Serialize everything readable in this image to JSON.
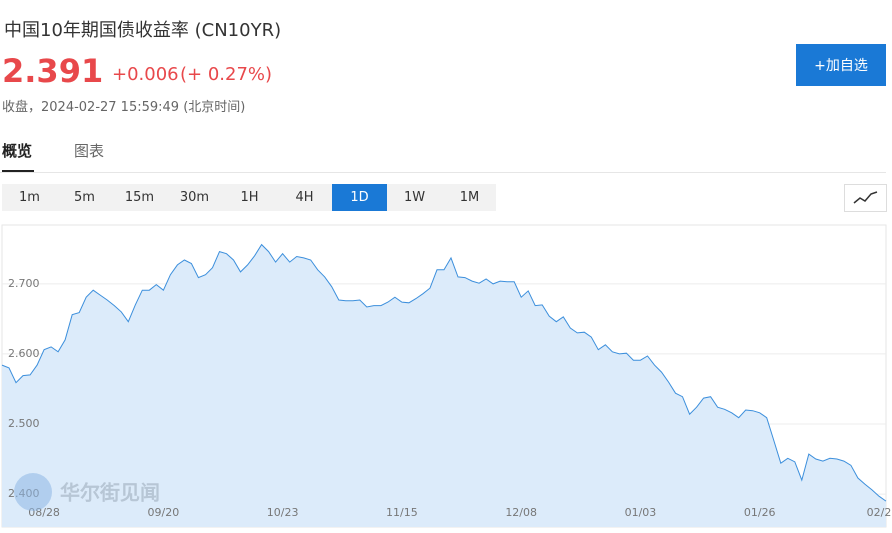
{
  "header": {
    "title": "中国10年期国债收益率  (CN10YR)",
    "price": "2.391",
    "change": "+0.006",
    "change_pct": "(+ 0.27%)",
    "status": "收盘，2024-02-27 15:59:49 (北京时间)",
    "button": "+加自选"
  },
  "tabs": [
    "概览",
    "图表"
  ],
  "intervals": {
    "options": [
      "1m",
      "5m",
      "15m",
      "30m",
      "1H",
      "4H",
      "1D",
      "1W",
      "1M"
    ],
    "active": "1D"
  },
  "watermark": "华尔街见闻",
  "chart_data": {
    "type": "area",
    "categories": [
      null,
      null,
      null,
      null,
      null,
      null,
      "08/28",
      null,
      null,
      null,
      null,
      null,
      null,
      null,
      null,
      null,
      null,
      null,
      null,
      null,
      null,
      null,
      null,
      "09/20",
      null,
      null,
      null,
      null,
      null,
      null,
      null,
      null,
      null,
      null,
      null,
      null,
      null,
      null,
      null,
      null,
      "10/23",
      null,
      null,
      null,
      null,
      null,
      null,
      null,
      null,
      null,
      null,
      null,
      null,
      null,
      null,
      null,
      null,
      "11/15",
      null,
      null,
      null,
      null,
      null,
      null,
      null,
      null,
      null,
      null,
      null,
      null,
      null,
      null,
      null,
      null,
      "12/08",
      null,
      null,
      null,
      null,
      null,
      null,
      null,
      null,
      null,
      null,
      null,
      null,
      null,
      null,
      null,
      null,
      "01/03",
      null,
      null,
      null,
      null,
      null,
      null,
      null,
      null,
      null,
      null,
      null,
      null,
      null,
      null,
      null,
      null,
      "01/26",
      null,
      null,
      null,
      null,
      null,
      null,
      null,
      null,
      null,
      null,
      null,
      null,
      null,
      null,
      null,
      null,
      "02/2",
      null
    ],
    "series": [
      {
        "color": "#3c8fdc",
        "fill": "#dcebfa",
        "values": [
          2.584,
          2.58,
          2.559,
          2.569,
          2.57,
          2.584,
          2.606,
          2.61,
          2.603,
          2.62,
          2.656,
          2.659,
          2.681,
          2.691,
          2.684,
          2.677,
          2.669,
          2.66,
          2.646,
          2.67,
          2.691,
          2.691,
          2.699,
          2.691,
          2.713,
          2.727,
          2.734,
          2.729,
          2.709,
          2.713,
          2.723,
          2.746,
          2.743,
          2.734,
          2.717,
          2.727,
          2.74,
          2.756,
          2.746,
          2.731,
          2.743,
          2.731,
          2.739,
          2.737,
          2.734,
          2.72,
          2.71,
          2.696,
          2.677,
          2.676,
          2.676,
          2.677,
          2.667,
          2.669,
          2.669,
          2.674,
          2.681,
          2.674,
          2.673,
          2.679,
          2.686,
          2.694,
          2.72,
          2.72,
          2.737,
          2.71,
          2.709,
          2.704,
          2.701,
          2.707,
          2.7,
          2.704,
          2.703,
          2.703,
          2.681,
          2.69,
          2.669,
          2.67,
          2.654,
          2.646,
          2.653,
          2.637,
          2.63,
          2.631,
          2.624,
          2.606,
          2.613,
          2.603,
          2.6,
          2.601,
          2.591,
          2.591,
          2.597,
          2.584,
          2.574,
          2.56,
          2.544,
          2.539,
          2.514,
          2.524,
          2.537,
          2.539,
          2.524,
          2.521,
          2.516,
          2.509,
          2.52,
          2.519,
          2.516,
          2.509,
          2.477,
          2.444,
          2.451,
          2.446,
          2.42,
          2.457,
          2.45,
          2.447,
          2.451,
          2.45,
          2.447,
          2.441,
          2.423,
          2.414,
          2.406,
          2.397,
          2.39
        ]
      }
    ],
    "ylim": [
      2.353,
      2.784
    ],
    "yticks": [
      {
        "value": 2.4,
        "label": "2.400"
      },
      {
        "value": 2.5,
        "label": "2.500"
      },
      {
        "value": 2.6,
        "label": "2.600"
      },
      {
        "value": 2.7,
        "label": "2.700"
      }
    ],
    "grid": true
  }
}
